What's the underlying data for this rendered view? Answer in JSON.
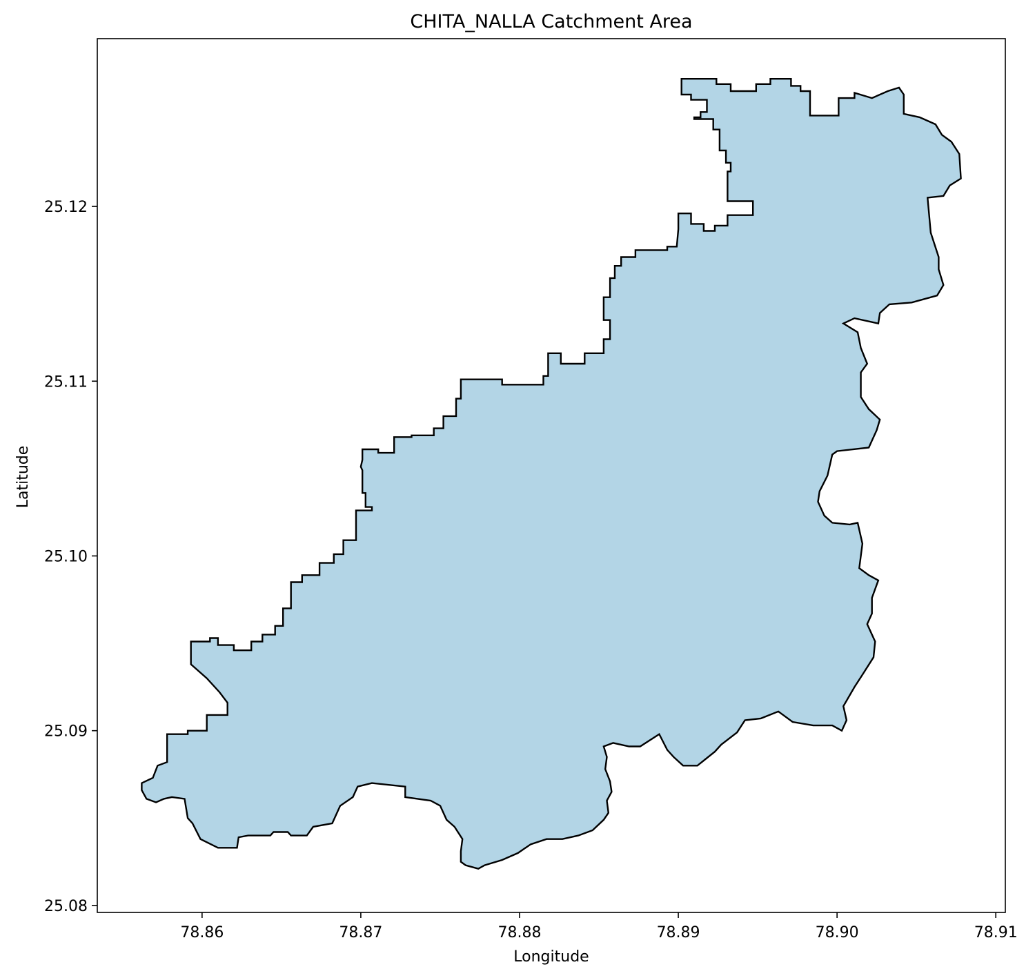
{
  "chart_data": {
    "type": "map",
    "title": "CHITA_NALLA Catchment Area",
    "xlabel": "Longitude",
    "ylabel": "Latitude",
    "xlim": [
      78.8534,
      78.9106
    ],
    "ylim": [
      25.0796,
      25.1296
    ],
    "xticks": [
      78.86,
      78.87,
      78.88,
      78.89,
      78.9,
      78.91
    ],
    "xtick_labels": [
      "78.86",
      "78.87",
      "78.88",
      "78.89",
      "78.90",
      "78.91"
    ],
    "yticks": [
      25.08,
      25.09,
      25.1,
      25.11,
      25.12
    ],
    "ytick_labels": [
      "25.08",
      "25.09",
      "25.10",
      "25.11",
      "25.12"
    ],
    "grid": false,
    "polygon_fill": "#b3d5e6",
    "polygon_edge": "#000000",
    "polygon": [
      [
        78.9011,
        25.1265
      ],
      [
        78.9011,
        25.1262
      ],
      [
        78.9001,
        25.1262
      ],
      [
        78.9001,
        25.1252
      ],
      [
        78.8983,
        25.1252
      ],
      [
        78.8983,
        25.1266
      ],
      [
        78.8977,
        25.1266
      ],
      [
        78.8977,
        25.1269
      ],
      [
        78.8971,
        25.1269
      ],
      [
        78.8971,
        25.1273
      ],
      [
        78.8958,
        25.1273
      ],
      [
        78.8958,
        25.127
      ],
      [
        78.8949,
        25.127
      ],
      [
        78.8949,
        25.1266
      ],
      [
        78.8933,
        25.1266
      ],
      [
        78.8933,
        25.127
      ],
      [
        78.8924,
        25.127
      ],
      [
        78.8924,
        25.1273
      ],
      [
        78.8902,
        25.1273
      ],
      [
        78.8902,
        25.1264
      ],
      [
        78.8908,
        25.1264
      ],
      [
        78.8908,
        25.1261
      ],
      [
        78.8918,
        25.1261
      ],
      [
        78.8918,
        25.1254
      ],
      [
        78.8914,
        25.1254
      ],
      [
        78.8914,
        25.1251
      ],
      [
        78.891,
        25.1251
      ],
      [
        78.891,
        25.125
      ],
      [
        78.8922,
        25.125
      ],
      [
        78.8922,
        25.1244
      ],
      [
        78.8926,
        25.1244
      ],
      [
        78.8926,
        25.1232
      ],
      [
        78.893,
        25.1232
      ],
      [
        78.893,
        25.1225
      ],
      [
        78.8933,
        25.1225
      ],
      [
        78.8933,
        25.122
      ],
      [
        78.8931,
        25.122
      ],
      [
        78.8931,
        25.1203
      ],
      [
        78.8947,
        25.1203
      ],
      [
        78.8947,
        25.1195
      ],
      [
        78.8931,
        25.1195
      ],
      [
        78.8931,
        25.1189
      ],
      [
        78.8923,
        25.1189
      ],
      [
        78.8923,
        25.1186
      ],
      [
        78.8916,
        25.1186
      ],
      [
        78.8916,
        25.119
      ],
      [
        78.8908,
        25.119
      ],
      [
        78.8908,
        25.1196
      ],
      [
        78.89,
        25.1196
      ],
      [
        78.89,
        25.1187
      ],
      [
        78.8899,
        25.1177
      ],
      [
        78.8893,
        25.1177
      ],
      [
        78.8893,
        25.1175
      ],
      [
        78.8873,
        25.1175
      ],
      [
        78.8873,
        25.1171
      ],
      [
        78.8864,
        25.1171
      ],
      [
        78.8864,
        25.1166
      ],
      [
        78.886,
        25.1166
      ],
      [
        78.886,
        25.1159
      ],
      [
        78.8857,
        25.1159
      ],
      [
        78.8857,
        25.1148
      ],
      [
        78.8853,
        25.1148
      ],
      [
        78.8853,
        25.1135
      ],
      [
        78.8857,
        25.1135
      ],
      [
        78.8857,
        25.1124
      ],
      [
        78.8853,
        25.1124
      ],
      [
        78.8853,
        25.1116
      ],
      [
        78.8841,
        25.1116
      ],
      [
        78.8841,
        25.111
      ],
      [
        78.8826,
        25.111
      ],
      [
        78.8826,
        25.1116
      ],
      [
        78.8818,
        25.1116
      ],
      [
        78.8818,
        25.1103
      ],
      [
        78.8815,
        25.1103
      ],
      [
        78.8815,
        25.1098
      ],
      [
        78.8789,
        25.1098
      ],
      [
        78.8789,
        25.1101
      ],
      [
        78.8763,
        25.1101
      ],
      [
        78.8763,
        25.109
      ],
      [
        78.876,
        25.109
      ],
      [
        78.876,
        25.108
      ],
      [
        78.8752,
        25.108
      ],
      [
        78.8752,
        25.1073
      ],
      [
        78.8746,
        25.1073
      ],
      [
        78.8746,
        25.1069
      ],
      [
        78.8732,
        25.1069
      ],
      [
        78.8732,
        25.1068
      ],
      [
        78.8721,
        25.1068
      ],
      [
        78.8721,
        25.1059
      ],
      [
        78.8711,
        25.1059
      ],
      [
        78.8711,
        25.1061
      ],
      [
        78.8701,
        25.1061
      ],
      [
        78.8701,
        25.1055
      ],
      [
        78.87,
        25.1051
      ],
      [
        78.8701,
        25.1049
      ],
      [
        78.8701,
        25.1036
      ],
      [
        78.8703,
        25.1036
      ],
      [
        78.8703,
        25.1028
      ],
      [
        78.8707,
        25.1028
      ],
      [
        78.8707,
        25.1026
      ],
      [
        78.8697,
        25.1026
      ],
      [
        78.8697,
        25.1009
      ],
      [
        78.8689,
        25.1009
      ],
      [
        78.8689,
        25.1001
      ],
      [
        78.8683,
        25.1001
      ],
      [
        78.8683,
        25.0996
      ],
      [
        78.8674,
        25.0996
      ],
      [
        78.8674,
        25.0989
      ],
      [
        78.8663,
        25.0989
      ],
      [
        78.8663,
        25.0985
      ],
      [
        78.8656,
        25.0985
      ],
      [
        78.8656,
        25.097
      ],
      [
        78.8651,
        25.097
      ],
      [
        78.8651,
        25.096
      ],
      [
        78.8646,
        25.096
      ],
      [
        78.8646,
        25.0955
      ],
      [
        78.8638,
        25.0955
      ],
      [
        78.8638,
        25.0951
      ],
      [
        78.8631,
        25.0951
      ],
      [
        78.8631,
        25.0946
      ],
      [
        78.862,
        25.0946
      ],
      [
        78.862,
        25.0949
      ],
      [
        78.861,
        25.0949
      ],
      [
        78.861,
        25.0953
      ],
      [
        78.8605,
        25.0953
      ],
      [
        78.8605,
        25.0951
      ],
      [
        78.8593,
        25.0951
      ],
      [
        78.8593,
        25.0938
      ],
      [
        78.8603,
        25.093
      ],
      [
        78.8611,
        25.0922
      ],
      [
        78.8616,
        25.0916
      ],
      [
        78.8616,
        25.0909
      ],
      [
        78.8603,
        25.0909
      ],
      [
        78.8603,
        25.09
      ],
      [
        78.8591,
        25.09
      ],
      [
        78.8591,
        25.0898
      ],
      [
        78.8578,
        25.0898
      ],
      [
        78.8578,
        25.0882
      ],
      [
        78.8572,
        25.088
      ],
      [
        78.8569,
        25.0873
      ],
      [
        78.8562,
        25.087
      ],
      [
        78.8562,
        25.0866
      ],
      [
        78.8565,
        25.0861
      ],
      [
        78.8571,
        25.0859
      ],
      [
        78.8576,
        25.0861
      ],
      [
        78.8581,
        25.0862
      ],
      [
        78.8589,
        25.0861
      ],
      [
        78.8591,
        25.085
      ],
      [
        78.8594,
        25.0847
      ],
      [
        78.8599,
        25.0838
      ],
      [
        78.861,
        25.0833
      ],
      [
        78.8622,
        25.0833
      ],
      [
        78.8623,
        25.0839
      ],
      [
        78.8629,
        25.084
      ],
      [
        78.8643,
        25.084
      ],
      [
        78.8645,
        25.0842
      ],
      [
        78.8654,
        25.0842
      ],
      [
        78.8656,
        25.084
      ],
      [
        78.8666,
        25.084
      ],
      [
        78.867,
        25.0845
      ],
      [
        78.8682,
        25.0847
      ],
      [
        78.8687,
        25.0857
      ],
      [
        78.8695,
        25.0862
      ],
      [
        78.8698,
        25.0868
      ],
      [
        78.8707,
        25.087
      ],
      [
        78.8728,
        25.0868
      ],
      [
        78.8728,
        25.0862
      ],
      [
        78.8744,
        25.086
      ],
      [
        78.875,
        25.0857
      ],
      [
        78.8754,
        25.0849
      ],
      [
        78.8759,
        25.0845
      ],
      [
        78.8764,
        25.0838
      ],
      [
        78.8763,
        25.0831
      ],
      [
        78.8763,
        25.0825
      ],
      [
        78.8766,
        25.0823
      ],
      [
        78.8774,
        25.0821
      ],
      [
        78.8778,
        25.0823
      ],
      [
        78.8789,
        25.0826
      ],
      [
        78.8799,
        25.083
      ],
      [
        78.8807,
        25.0835
      ],
      [
        78.8817,
        25.0838
      ],
      [
        78.8827,
        25.0838
      ],
      [
        78.8837,
        25.084
      ],
      [
        78.8846,
        25.0843
      ],
      [
        78.8853,
        25.0849
      ],
      [
        78.8856,
        25.0853
      ],
      [
        78.8855,
        25.086
      ],
      [
        78.8858,
        25.0865
      ],
      [
        78.8857,
        25.0871
      ],
      [
        78.8854,
        25.0878
      ],
      [
        78.8855,
        25.0885
      ],
      [
        78.8853,
        25.0891
      ],
      [
        78.8859,
        25.0893
      ],
      [
        78.8869,
        25.0891
      ],
      [
        78.8876,
        25.0891
      ],
      [
        78.8888,
        25.0898
      ],
      [
        78.8893,
        25.0889
      ],
      [
        78.8897,
        25.0885
      ],
      [
        78.8903,
        25.088
      ],
      [
        78.8912,
        25.088
      ],
      [
        78.8923,
        25.0888
      ],
      [
        78.8927,
        25.0892
      ],
      [
        78.8937,
        25.0899
      ],
      [
        78.8942,
        25.0906
      ],
      [
        78.8952,
        25.0907
      ],
      [
        78.8963,
        25.0911
      ],
      [
        78.8972,
        25.0905
      ],
      [
        78.8985,
        25.0903
      ],
      [
        78.8997,
        25.0903
      ],
      [
        78.9003,
        25.09
      ],
      [
        78.9006,
        25.0906
      ],
      [
        78.9004,
        25.0914
      ],
      [
        78.9011,
        25.0925
      ],
      [
        78.9016,
        25.0932
      ],
      [
        78.9023,
        25.0942
      ],
      [
        78.9024,
        25.0951
      ],
      [
        78.9019,
        25.0961
      ],
      [
        78.9022,
        25.0967
      ],
      [
        78.9022,
        25.0976
      ],
      [
        78.9026,
        25.0986
      ],
      [
        78.902,
        25.0989
      ],
      [
        78.9014,
        25.0993
      ],
      [
        78.9016,
        25.1007
      ],
      [
        78.9013,
        25.1019
      ],
      [
        78.9008,
        25.1018
      ],
      [
        78.8997,
        25.1019
      ],
      [
        78.8992,
        25.1023
      ],
      [
        78.8988,
        25.1031
      ],
      [
        78.8989,
        25.1037
      ],
      [
        78.8994,
        25.1046
      ],
      [
        78.8997,
        25.1058
      ],
      [
        78.9,
        25.106
      ],
      [
        78.902,
        25.1062
      ],
      [
        78.9025,
        25.1072
      ],
      [
        78.9027,
        25.1078
      ],
      [
        78.902,
        25.1084
      ],
      [
        78.9015,
        25.1091
      ],
      [
        78.9015,
        25.1105
      ],
      [
        78.9019,
        25.111
      ],
      [
        78.9015,
        25.1119
      ],
      [
        78.9013,
        25.1128
      ],
      [
        78.9004,
        25.1133
      ],
      [
        78.9011,
        25.1136
      ],
      [
        78.9026,
        25.1133
      ],
      [
        78.9027,
        25.1139
      ],
      [
        78.9033,
        25.1144
      ],
      [
        78.9047,
        25.1145
      ],
      [
        78.9063,
        25.1149
      ],
      [
        78.9067,
        25.1155
      ],
      [
        78.9064,
        25.1164
      ],
      [
        78.9064,
        25.1171
      ],
      [
        78.9059,
        25.1185
      ],
      [
        78.9057,
        25.1205
      ],
      [
        78.9067,
        25.1206
      ],
      [
        78.9071,
        25.1212
      ],
      [
        78.9078,
        25.1216
      ],
      [
        78.9077,
        25.123
      ],
      [
        78.9072,
        25.1237
      ],
      [
        78.9066,
        25.1241
      ],
      [
        78.9062,
        25.1247
      ],
      [
        78.9052,
        25.1251
      ],
      [
        78.9042,
        25.1253
      ],
      [
        78.9042,
        25.1264
      ],
      [
        78.9039,
        25.1268
      ],
      [
        78.9032,
        25.1266
      ],
      [
        78.9022,
        25.1262
      ],
      [
        78.9011,
        25.1265
      ]
    ]
  }
}
